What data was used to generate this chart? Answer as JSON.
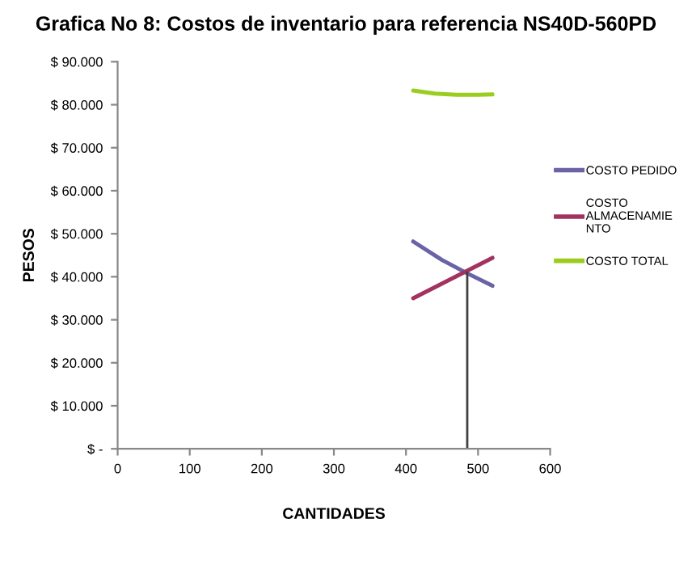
{
  "chart_data": {
    "type": "line",
    "title": "Grafica No 8: Costos de inventario para referencia NS40D-560PD",
    "xlabel": "CANTIDADES",
    "ylabel": "PESOS",
    "xlim": [
      0,
      600
    ],
    "xticks": [
      0,
      100,
      200,
      300,
      400,
      500,
      600
    ],
    "ylim": [
      0,
      90000
    ],
    "yticks": [
      {
        "value": 0,
        "label": "$ -"
      },
      {
        "value": 10000,
        "label": "$ 10.000"
      },
      {
        "value": 20000,
        "label": "$ 20.000"
      },
      {
        "value": 30000,
        "label": "$ 30.000"
      },
      {
        "value": 40000,
        "label": "$ 40.000"
      },
      {
        "value": 50000,
        "label": "$ 50.000"
      },
      {
        "value": 60000,
        "label": "$ 60.000"
      },
      {
        "value": 70000,
        "label": "$ 70.000"
      },
      {
        "value": 80000,
        "label": "$ 80.000"
      },
      {
        "value": 90000,
        "label": "$ 90.000"
      }
    ],
    "grid": false,
    "legend": "right",
    "marker": "none",
    "series": [
      {
        "name": "COSTO PEDIDO",
        "color": "#6a63a6",
        "x": [
          410,
          450,
          485,
          520
        ],
        "values": [
          48200,
          43900,
          40800,
          37900
        ]
      },
      {
        "name": "COSTO ALMACENAMIENTO",
        "color": "#a3325f",
        "x": [
          410,
          520
        ],
        "values": [
          35000,
          44400
        ]
      },
      {
        "name": "COSTO TOTAL",
        "color": "#9acd1e",
        "x": [
          410,
          440,
          470,
          500,
          520
        ],
        "values": [
          83300,
          82600,
          82300,
          82300,
          82400
        ]
      },
      {
        "color": "#404040",
        "x": [
          485,
          485
        ],
        "values": [
          41000,
          0
        ]
      }
    ]
  }
}
